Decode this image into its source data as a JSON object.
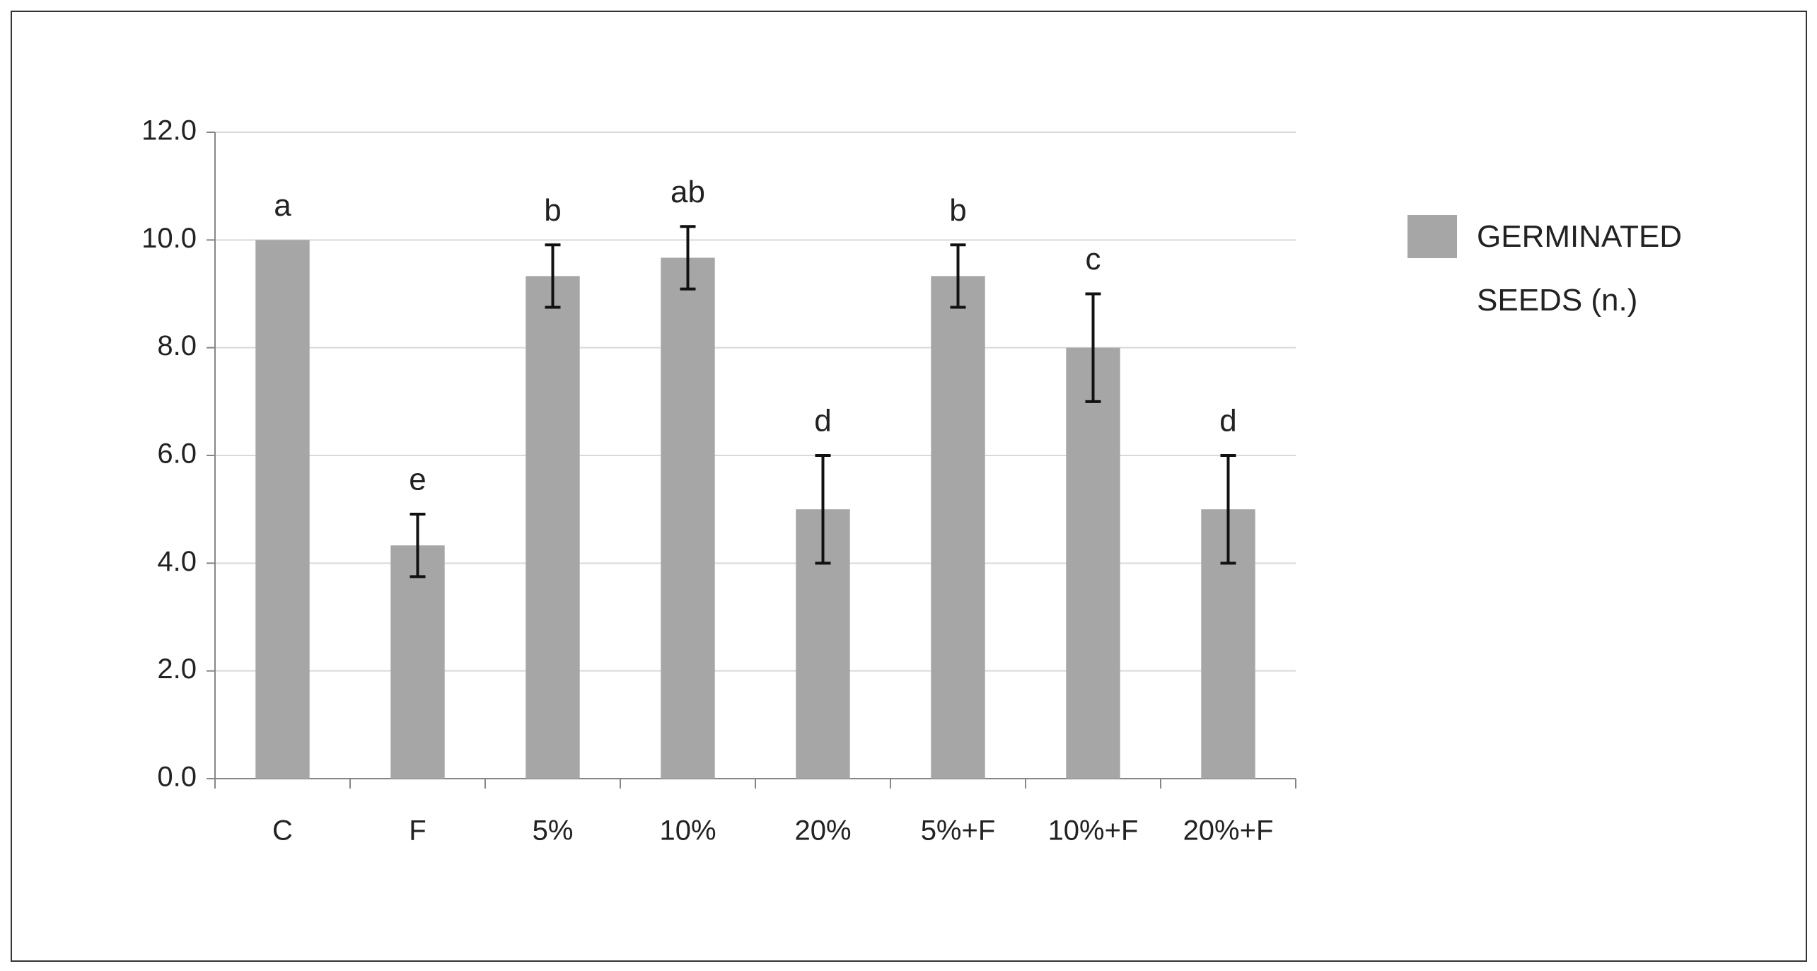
{
  "chart_data": {
    "type": "bar",
    "categories": [
      "C",
      "F",
      "5%",
      "10%",
      "20%",
      "5%+F",
      "10%+F",
      "20%+F"
    ],
    "series": [
      {
        "name": "GERMINATED SEEDS (n.)",
        "color": "#a6a6a6",
        "values": [
          10.0,
          4.33,
          9.33,
          9.67,
          5.0,
          9.33,
          8.0,
          5.0
        ],
        "errors": [
          null,
          0.58,
          0.58,
          0.58,
          1.0,
          0.58,
          1.0,
          1.0
        ],
        "letters": [
          "a",
          "e",
          "b",
          "ab",
          "d",
          "b",
          "c",
          "d"
        ]
      }
    ],
    "ylim": [
      0,
      12
    ],
    "yticks": [
      {
        "value": 0,
        "label": "0.0"
      },
      {
        "value": 2,
        "label": "2.0"
      },
      {
        "value": 4,
        "label": "4.0"
      },
      {
        "value": 6,
        "label": "6.0"
      },
      {
        "value": 8,
        "label": "8.0"
      },
      {
        "value": 10,
        "label": "10.0"
      },
      {
        "value": 12,
        "label": "12.0"
      }
    ],
    "grid": true,
    "legend": "right"
  }
}
